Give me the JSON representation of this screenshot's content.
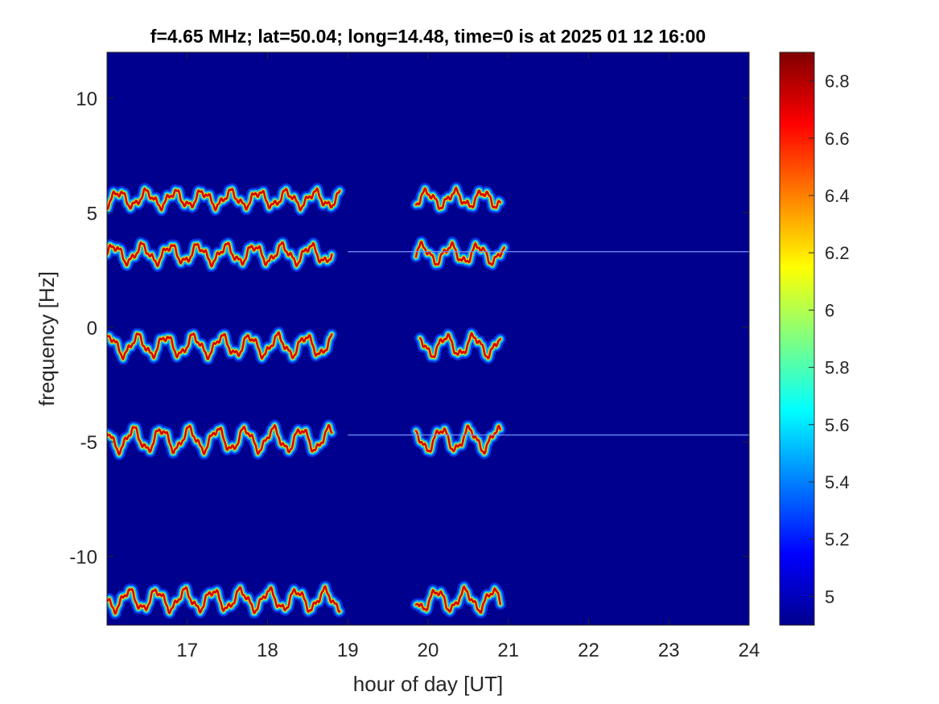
{
  "chart_data": {
    "type": "heatmap",
    "title": "f=4.65 MHz;  lat=50.04; long=14.48, time=0 is at 2025 01 12 16:00",
    "xlabel": "hour of day [UT]",
    "ylabel": "frequency [Hz]",
    "xlim": [
      16,
      24
    ],
    "ylim": [
      -13,
      12
    ],
    "xticks": [
      17,
      18,
      19,
      20,
      21,
      22,
      23,
      24
    ],
    "yticks": [
      10,
      5,
      0,
      -5,
      -10
    ],
    "colorbar": {
      "clim": [
        4.9,
        6.9
      ],
      "ticks": [
        6.8,
        6.6,
        6.4,
        6.2,
        6,
        5.8,
        5.6,
        5.4,
        5.2,
        5
      ],
      "colormap": "jet"
    },
    "background_color": "#00008f",
    "traces": [
      {
        "center_freq": 5.6,
        "amplitude": 0.3,
        "segments": [
          [
            16.0,
            18.9
          ],
          [
            19.85,
            20.9
          ]
        ]
      },
      {
        "center_freq": 3.2,
        "amplitude": 0.35,
        "segments": [
          [
            16.0,
            18.8
          ],
          [
            19.85,
            20.95
          ]
        ]
      },
      {
        "center_freq": -0.8,
        "amplitude": 0.4,
        "segments": [
          [
            16.0,
            18.8
          ],
          [
            19.9,
            20.9
          ]
        ]
      },
      {
        "center_freq": -4.9,
        "amplitude": 0.45,
        "segments": [
          [
            16.0,
            18.8
          ],
          [
            19.85,
            20.9
          ]
        ]
      },
      {
        "center_freq": -11.9,
        "amplitude": 0.4,
        "segments": [
          [
            16.0,
            18.9
          ],
          [
            19.85,
            20.9
          ]
        ]
      }
    ],
    "interference_lines": [
      {
        "freq": 3.3,
        "from_hour": 19.0,
        "to_hour": 24.0
      },
      {
        "freq": -4.7,
        "from_hour": 19.0,
        "to_hour": 24.0
      }
    ]
  }
}
